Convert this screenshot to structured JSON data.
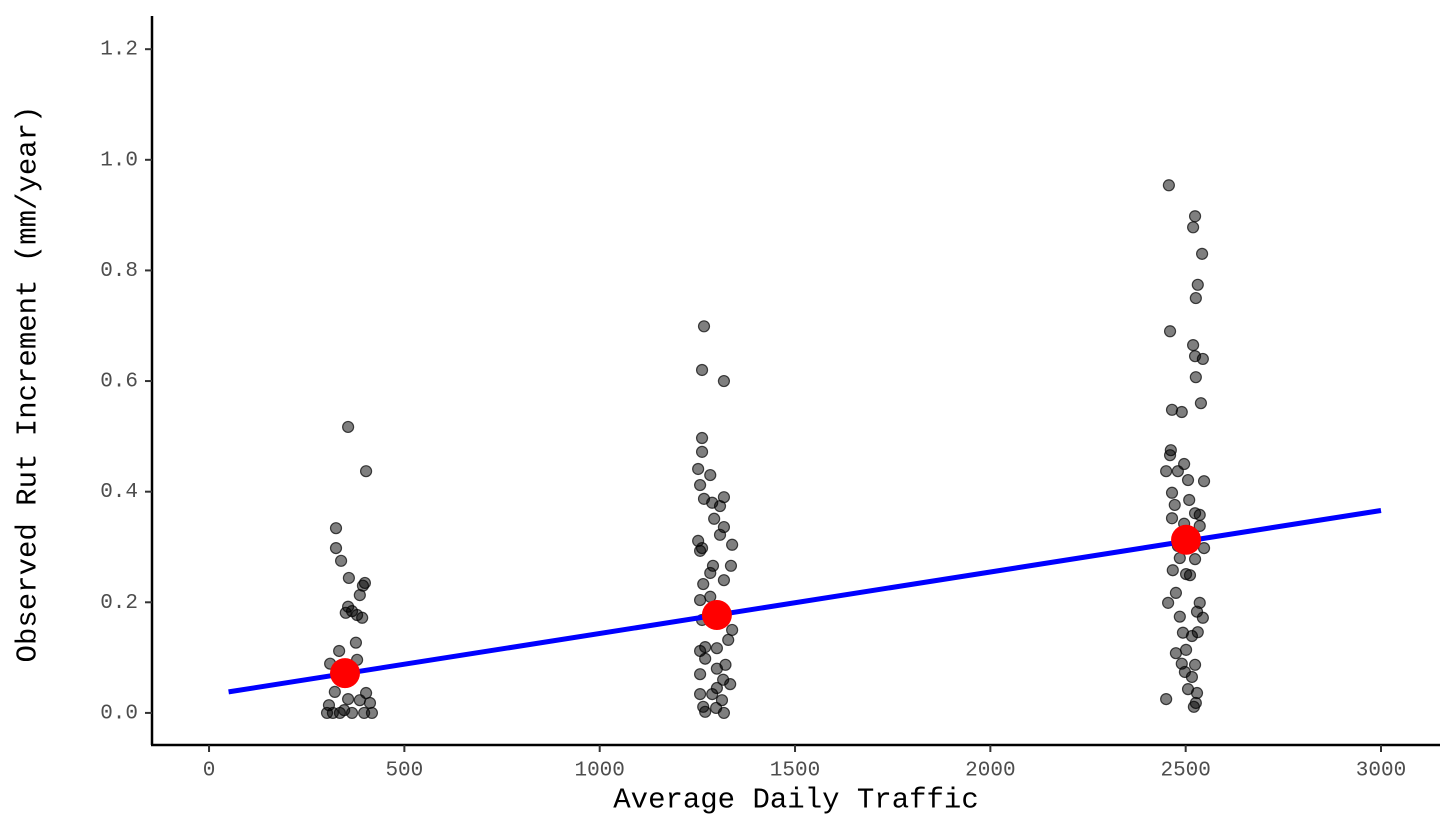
{
  "chart_data": {
    "type": "scatter",
    "xlabel": "Average Daily Traffic",
    "ylabel": "Observed Rut Increment (mm/year)",
    "xlim": [
      -146,
      3151
    ],
    "ylim": [
      -0.058,
      1.26
    ],
    "xticks": [
      0,
      500,
      1000,
      1500,
      2000,
      2500,
      3000
    ],
    "yticks": [
      {
        "value": 0,
        "label": "0.0"
      },
      0.2,
      0.4,
      0.6,
      0.8,
      {
        "value": 1,
        "label": "1.0"
      },
      1.2
    ],
    "grid": false,
    "series": [
      {
        "kind": "points",
        "color": "#000000",
        "x": [
          356,
          402,
          325,
          325,
          338,
          358,
          399,
          394,
          356,
          350,
          366,
          379,
          392,
          386,
          376,
          333,
          310,
          340,
          379,
          402,
          322,
          386,
          307,
          346,
          302,
          335,
          366,
          397,
          417,
          356,
          412,
          317,
          1267,
          1262,
          1318,
          1262,
          1262,
          1252,
          1283,
          1257,
          1318,
          1267,
          1288,
          1308,
          1293,
          1318,
          1308,
          1252,
          1339,
          1262,
          1257,
          1290,
          1336,
          1283,
          1318,
          1265,
          1257,
          1283,
          1262,
          1339,
          1329,
          1270,
          1300,
          1257,
          1270,
          1322,
          1300,
          1257,
          1316,
          1334,
          1300,
          1257,
          1288,
          1313,
          1265,
          1298,
          1270,
          1318,
          2457,
          2524,
          2519,
          2542,
          2531,
          2526,
          2460,
          2519,
          2524,
          2544,
          2526,
          2539,
          2465,
          2490,
          2462,
          2460,
          2496,
          2450,
          2480,
          2506,
          2547,
          2465,
          2509,
          2472,
          2524,
          2536,
          2465,
          2496,
          2536,
          2480,
          2547,
          2485,
          2524,
          2467,
          2501,
          2511,
          2475,
          2455,
          2536,
          2529,
          2485,
          2544,
          2493,
          2531,
          2516,
          2475,
          2501,
          2490,
          2524,
          2498,
          2516,
          2506,
          2529,
          2450,
          2526,
          2521
        ],
        "values": [
          0.517,
          0.437,
          0.334,
          0.298,
          0.275,
          0.244,
          0.235,
          0.23,
          0.192,
          0.181,
          0.184,
          0.177,
          0.172,
          0.213,
          0.127,
          0.112,
          0.089,
          0.081,
          0.096,
          0.036,
          0.038,
          0.023,
          0.014,
          0.005,
          0,
          0,
          0,
          0,
          0,
          0.025,
          0.018,
          0,
          0.699,
          0.62,
          0.6,
          0.497,
          0.472,
          0.441,
          0.43,
          0.412,
          0.39,
          0.387,
          0.38,
          0.374,
          0.351,
          0.336,
          0.322,
          0.311,
          0.304,
          0.298,
          0.293,
          0.266,
          0.266,
          0.253,
          0.24,
          0.233,
          0.204,
          0.21,
          0.168,
          0.15,
          0.132,
          0.119,
          0.117,
          0.112,
          0.098,
          0.087,
          0.08,
          0.07,
          0.06,
          0.052,
          0.045,
          0.034,
          0.034,
          0.023,
          0.011,
          0.009,
          0.002,
          0,
          0.954,
          0.898,
          0.878,
          0.83,
          0.774,
          0.75,
          0.69,
          0.665,
          0.645,
          0.64,
          0.607,
          0.56,
          0.548,
          0.544,
          0.475,
          0.466,
          0.45,
          0.437,
          0.437,
          0.421,
          0.419,
          0.398,
          0.385,
          0.376,
          0.361,
          0.358,
          0.352,
          0.342,
          0.338,
          0.302,
          0.298,
          0.28,
          0.278,
          0.258,
          0.251,
          0.249,
          0.217,
          0.199,
          0.199,
          0.183,
          0.174,
          0.172,
          0.145,
          0.146,
          0.139,
          0.108,
          0.114,
          0.089,
          0.087,
          0.074,
          0.065,
          0.043,
          0.036,
          0.025,
          0.018,
          0.011
        ]
      },
      {
        "kind": "line",
        "color": "#0000ff",
        "x": [
          50,
          3000
        ],
        "values": [
          0.038,
          0.366
        ]
      },
      {
        "kind": "means",
        "color": "#ff0000",
        "x": [
          348,
          1300,
          2501
        ],
        "values": [
          0.072,
          0.177,
          0.313
        ]
      }
    ]
  }
}
